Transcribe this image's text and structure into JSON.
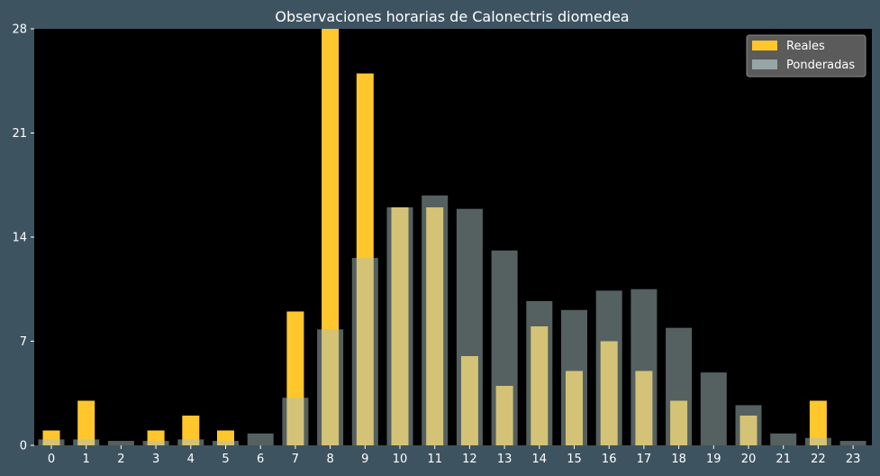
{
  "chart_data": {
    "type": "bar",
    "title": "Observaciones horarias de Calonectris diomedea",
    "xlabel": "",
    "ylabel": "",
    "categories": [
      "0",
      "1",
      "2",
      "3",
      "4",
      "5",
      "6",
      "7",
      "8",
      "9",
      "10",
      "11",
      "12",
      "13",
      "14",
      "15",
      "16",
      "17",
      "18",
      "19",
      "20",
      "21",
      "22",
      "23"
    ],
    "yticks": [
      "0",
      "7",
      "14",
      "21",
      "28"
    ],
    "ylim": [
      0,
      28.0
    ],
    "legend_position": "top-right",
    "grid": false,
    "series": [
      {
        "name": "Reales",
        "color": "#ffc72c",
        "values": [
          1,
          3,
          0,
          1,
          2,
          1,
          0,
          9,
          28,
          25,
          16,
          16,
          6,
          4,
          8,
          5,
          7,
          5,
          3,
          0,
          2,
          0,
          3,
          0
        ]
      },
      {
        "name": "Ponderadas",
        "color": "#a9bfbf",
        "values": [
          0.4,
          0.4,
          0.3,
          0.3,
          0.4,
          0.3,
          0.8,
          3.2,
          7.8,
          12.6,
          16.0,
          16.8,
          15.9,
          13.1,
          9.7,
          9.1,
          10.4,
          10.5,
          7.9,
          4.9,
          2.7,
          0.8,
          0.5,
          0.3
        ]
      }
    ]
  }
}
